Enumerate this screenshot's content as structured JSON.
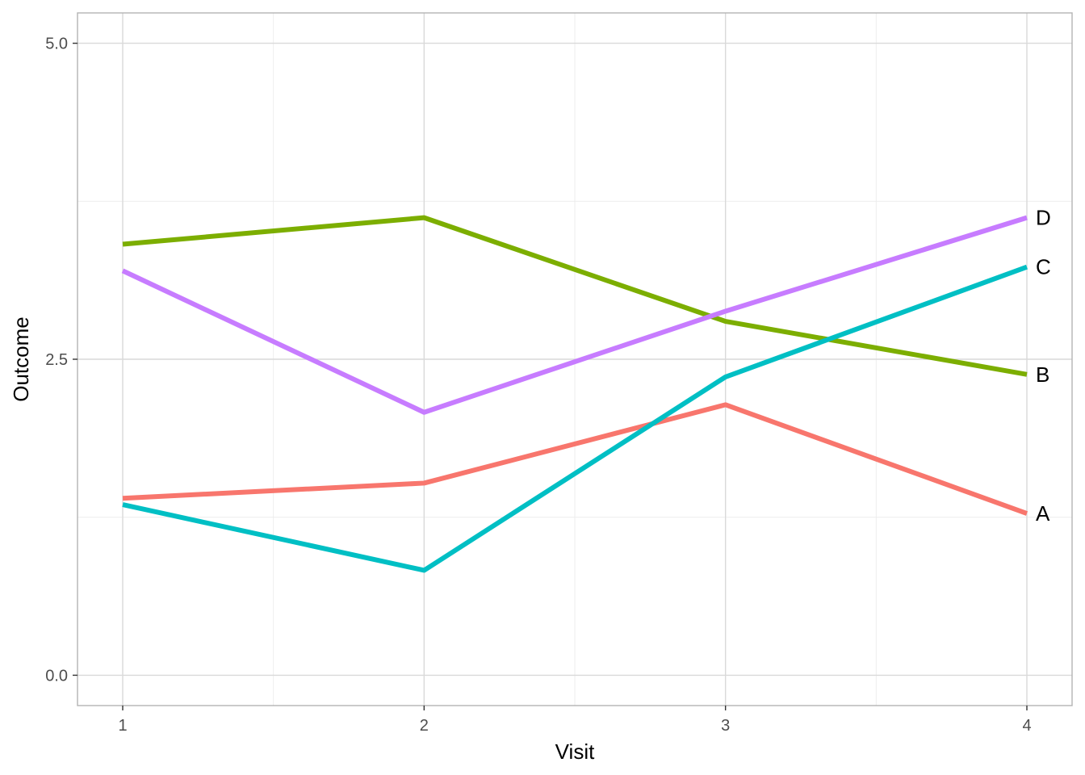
{
  "chart_data": {
    "type": "line",
    "title": "",
    "xlabel": "Visit",
    "ylabel": "Outcome",
    "x": [
      1,
      2,
      3,
      4
    ],
    "x_tick_labels": [
      "1",
      "2",
      "3",
      "4"
    ],
    "xlim": [
      0.85,
      4.15
    ],
    "ylim": [
      -0.24,
      5.24
    ],
    "y_ticks": [
      0,
      2.5,
      5
    ],
    "y_tick_labels": [
      "0.0",
      "2.5",
      "5.0"
    ],
    "grid": true,
    "legend": "direct-labels-right",
    "series": [
      {
        "name": "A",
        "label": "A",
        "color": "#F8766D",
        "values": [
          1.4,
          1.52,
          2.14,
          1.28
        ]
      },
      {
        "name": "B",
        "label": "B",
        "color": "#7CAE00",
        "values": [
          3.41,
          3.62,
          2.8,
          2.38
        ]
      },
      {
        "name": "C",
        "label": "C",
        "color": "#00BFC4",
        "values": [
          1.35,
          0.83,
          2.36,
          3.23
        ]
      },
      {
        "name": "D",
        "label": "D",
        "color": "#C77CFF",
        "values": [
          3.2,
          2.08,
          2.88,
          3.62
        ]
      }
    ]
  }
}
